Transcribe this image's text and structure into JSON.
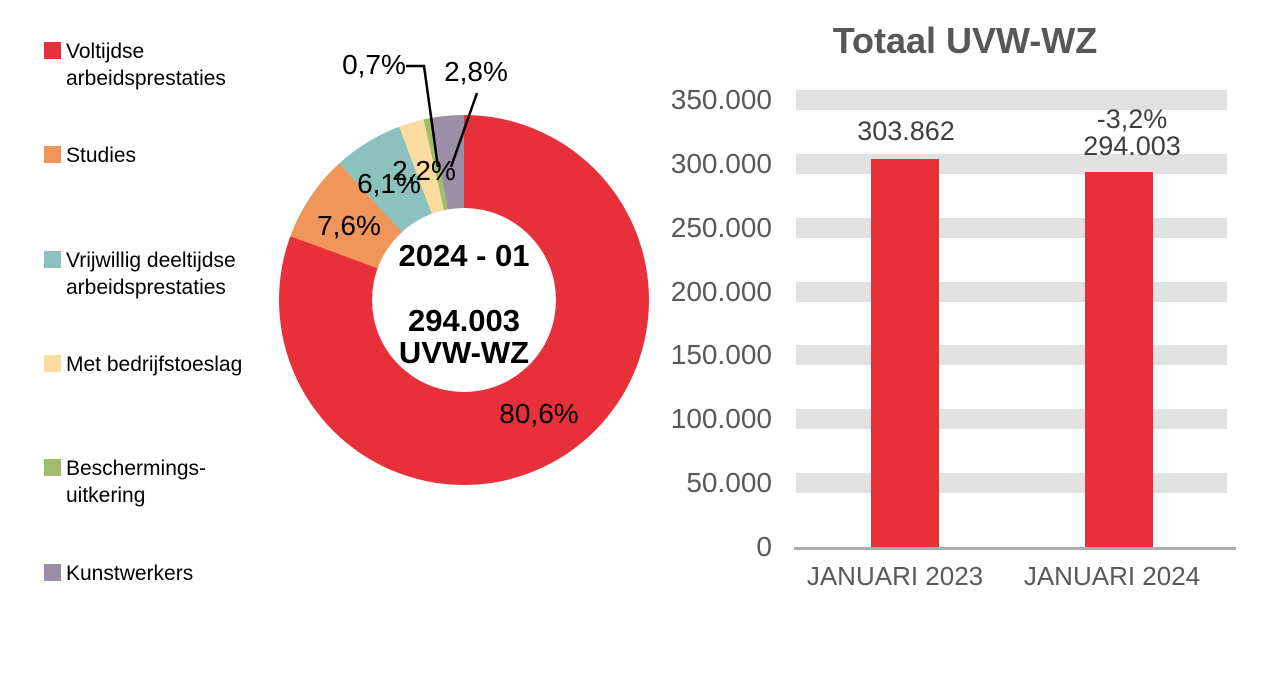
{
  "pie_section": {
    "legend": {
      "items": [
        {
          "label": "Voltijdse arbeidsprestaties",
          "color": "#E8303A"
        },
        {
          "label": "Studies",
          "color": "#F0965A"
        },
        {
          "label": "Vrijwillig deeltijdse arbeidsprestaties",
          "color": "#8CC2BE"
        },
        {
          "label": "Met bedrijfstoeslag",
          "color": "#FADC9E"
        },
        {
          "label": "Beschermings-uitkering",
          "color": "#A3BC6A"
        },
        {
          "label": "Kunstwerkers",
          "color": "#9B8EA7"
        }
      ]
    },
    "center": {
      "line1": "2024 - 01",
      "line2": "294.003",
      "line3": "UVW-WZ"
    }
  },
  "bar_section": {
    "title": "Totaal UVW-WZ",
    "y_axis_ticks": [
      "350.000",
      "300.000",
      "250.000",
      "200.000",
      "150.000",
      "100.000",
      "50.000",
      "0"
    ],
    "x_axis_labels": [
      "JANUARI 2023",
      "JANUARI 2024"
    ],
    "bar_value_labels": [
      [
        "303.862"
      ],
      [
        "-3,2%",
        "294.003"
      ]
    ]
  },
  "chart_data": [
    {
      "type": "pie",
      "donut": true,
      "categories": [
        "Voltijdse arbeidsprestaties",
        "Studies",
        "Vrijwillig deeltijdse arbeidsprestaties",
        "Met bedrijfstoeslag",
        "Beschermings-uitkering",
        "Kunstwerkers"
      ],
      "values": [
        80.6,
        7.6,
        6.1,
        2.2,
        0.7,
        2.8
      ],
      "value_labels": [
        "80,6%",
        "7,6%",
        "6,1%",
        "2,2%",
        "0,7%",
        "2,8%"
      ],
      "colors": [
        "#E8303A",
        "#F0965A",
        "#8CC2BE",
        "#FADC9E",
        "#A3BC6A",
        "#9B8EA7"
      ],
      "center_text": [
        "2024 - 01",
        "294.003",
        "UVW-WZ"
      ],
      "legend_position": "left",
      "start_angle_deg": 0,
      "direction": "clockwise"
    },
    {
      "type": "bar",
      "title": "Totaal UVW-WZ",
      "categories": [
        "JANUARI 2023",
        "JANUARI 2024"
      ],
      "values": [
        303862,
        294003
      ],
      "bar_labels": [
        "303.862",
        "-3,2% / 294.003"
      ],
      "change_label": "-3,2%",
      "xlabel": "",
      "ylabel": "",
      "ylim": [
        0,
        350000
      ],
      "ytick_step": 50000,
      "bar_color": "#E8303A",
      "grid": "horizontal-bands",
      "legend_position": "none"
    }
  ]
}
